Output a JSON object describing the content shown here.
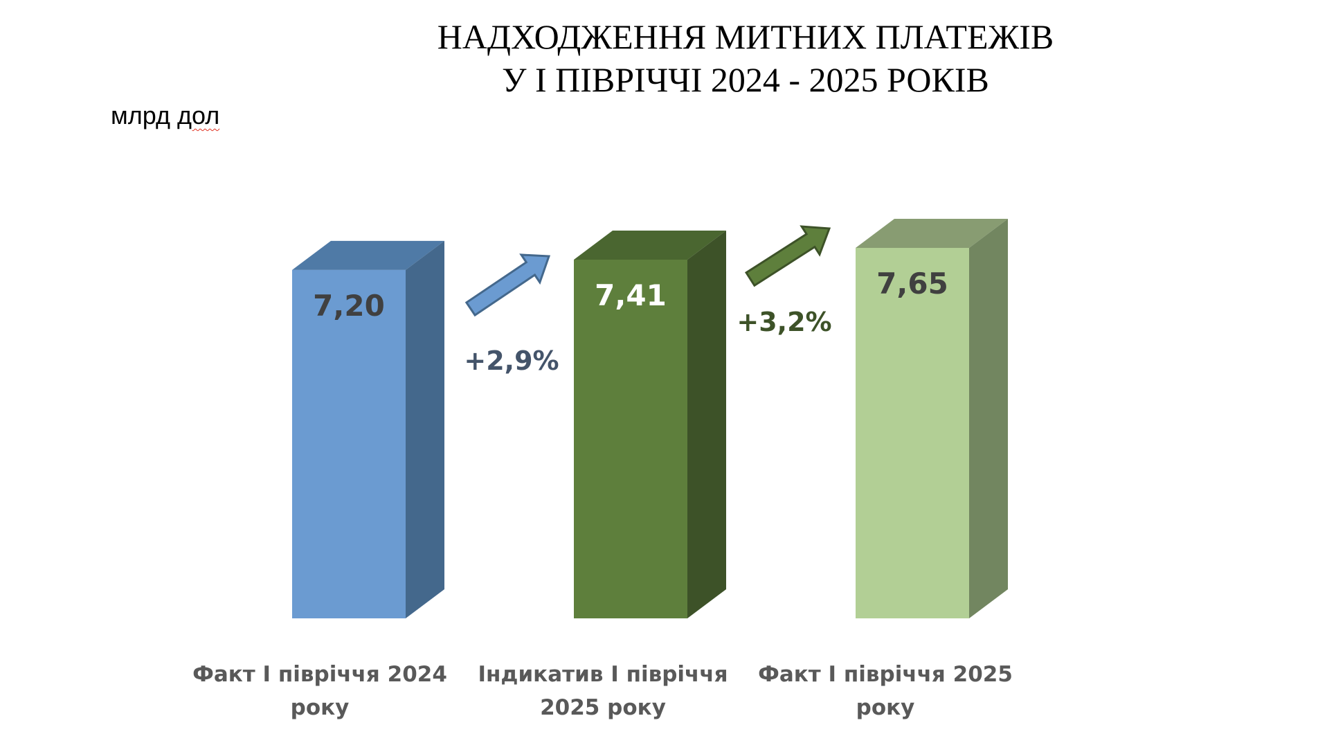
{
  "chart_data": {
    "type": "bar",
    "title": [
      "НАДХОДЖЕННЯ МИТНИХ ПЛАТЕЖІВ",
      "У І ПІВРІЧЧІ 2024 - 2025 РОКІВ"
    ],
    "unit_label_parts": [
      "млрд ",
      "дол"
    ],
    "categories": [
      [
        "Факт І півріччя 2024",
        "року"
      ],
      [
        "Індикатив І півріччя",
        "2025 року"
      ],
      [
        "Факт І півріччя 2025",
        "року"
      ]
    ],
    "values": [
      7.2,
      7.41,
      7.65
    ],
    "value_labels": [
      "7,20",
      "7,41",
      "7,65"
    ],
    "changes": [
      "+2,9%",
      "+3,2%"
    ],
    "three_d": true,
    "colors": {
      "bars": [
        {
          "front": "#6b9bd1",
          "side": "#44688c",
          "top": "#4f7aa6",
          "label": "#404040"
        },
        {
          "front": "#5e7f3c",
          "side": "#3d5228",
          "top": "#4a6630",
          "label": "#ffffff"
        },
        {
          "front": "#b2cf95",
          "side": "#728660",
          "top": "#889c72",
          "label": "#404040"
        }
      ],
      "arrows": [
        {
          "fill": "#6b9bd1",
          "stroke": "#44688c",
          "label": "#44546a"
        },
        {
          "fill": "#5e7f3c",
          "stroke": "#3d5228",
          "label": "#3d5228"
        }
      ]
    }
  }
}
